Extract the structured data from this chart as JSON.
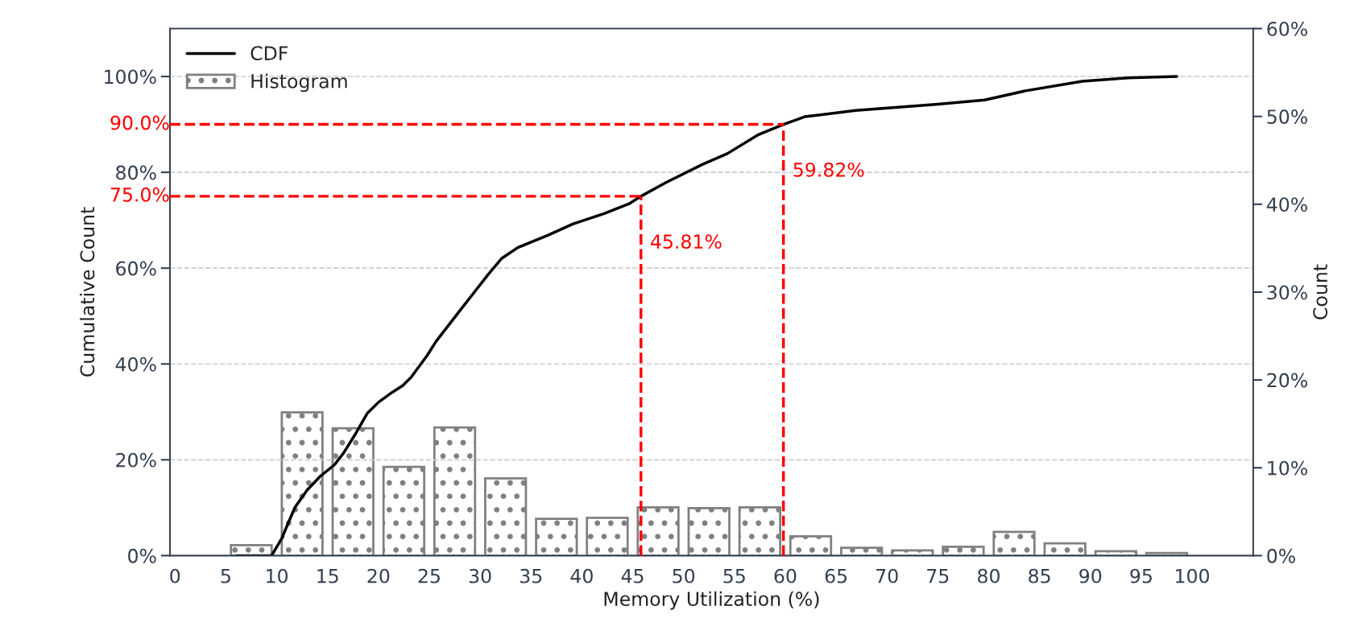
{
  "chart_data": {
    "type": "line",
    "xlabel": "Memory Utilization (%)",
    "ylabel": "Cumulative Count",
    "y2label": "Count",
    "xlim": [
      -0.5,
      106
    ],
    "xticks": [
      0,
      5,
      10,
      15,
      20,
      25,
      30,
      35,
      40,
      45,
      50,
      55,
      60,
      65,
      70,
      75,
      80,
      85,
      90,
      95,
      100
    ],
    "ylim": [
      0,
      110
    ],
    "yticks": [
      {
        "value": 0,
        "label": "0%"
      },
      {
        "value": 20,
        "label": "20%"
      },
      {
        "value": 40,
        "label": "40%"
      },
      {
        "value": 60,
        "label": "60%"
      },
      {
        "value": 80,
        "label": "80%"
      },
      {
        "value": 100,
        "label": "100%"
      }
    ],
    "y2lim": [
      0,
      60
    ],
    "y2ticks": [
      {
        "value": 0,
        "label": "0%"
      },
      {
        "value": 10,
        "label": "10%"
      },
      {
        "value": 20,
        "label": "20%"
      },
      {
        "value": 30,
        "label": "30%"
      },
      {
        "value": 40,
        "label": "40%"
      },
      {
        "value": 50,
        "label": "50%"
      },
      {
        "value": 60,
        "label": "60%"
      }
    ],
    "grid": "y",
    "legend": "top left",
    "series": [
      {
        "name": "CDF",
        "color": "#000000",
        "axis": "y",
        "line_style": "solid",
        "marker": "none",
        "x": [
          6,
          9.5,
          10.5,
          11.05,
          11.8,
          13.0,
          14.3,
          15.7,
          16.6,
          17.8,
          18.9,
          20.0,
          21.3,
          22.4,
          23.2,
          24.8,
          25.7,
          28.0,
          29.4,
          30.8,
          32.1,
          33.7,
          36.7,
          39.1,
          42.2,
          44.7,
          45.81,
          48.2,
          51.8,
          54.3,
          57.3,
          59.82,
          61.9,
          66.9,
          75.0,
          79.6,
          83.6,
          89.2,
          93.7,
          98.5
        ],
        "values": [
          0,
          0,
          3.6,
          6.4,
          10.1,
          13.7,
          16.6,
          19.0,
          21.5,
          25.6,
          29.7,
          32.0,
          34.0,
          35.5,
          37.2,
          41.8,
          44.8,
          51.1,
          54.9,
          58.7,
          62.0,
          64.3,
          66.9,
          69.2,
          71.4,
          73.5,
          75.0,
          77.8,
          81.6,
          83.9,
          87.8,
          90.0,
          91.6,
          92.9,
          94.2,
          95.1,
          97.0,
          99.0,
          99.7,
          100
        ]
      },
      {
        "name": "Histogram",
        "type": "histogram",
        "color": "#808080",
        "axis": "y2",
        "bins": [
          5,
          10,
          15,
          20,
          25,
          30,
          35,
          40,
          45,
          50,
          55,
          60,
          65,
          70,
          75,
          80,
          85,
          90,
          95,
          100
        ],
        "values": [
          1.2,
          16.3,
          14.5,
          10.1,
          14.6,
          8.8,
          4.2,
          4.3,
          5.5,
          5.4,
          5.5,
          2.2,
          0.9,
          0.6,
          1.0,
          2.7,
          1.4,
          0.5,
          0.3
        ]
      }
    ],
    "ref_lines": [
      {
        "axis": "y",
        "value": 75.0,
        "label": "75.0%",
        "color": "#ff0000",
        "line_style": "dashed"
      },
      {
        "axis": "y",
        "value": 90.0,
        "label": "90.0%",
        "color": "#ff0000",
        "line_style": "dashed"
      },
      {
        "axis": "x",
        "value": 45.81,
        "label": "45.81%",
        "color": "#ff0000",
        "line_style": "dashed"
      },
      {
        "axis": "x",
        "value": 59.82,
        "label": "59.82%",
        "color": "#ff0000",
        "line_style": "dashed"
      }
    ]
  }
}
